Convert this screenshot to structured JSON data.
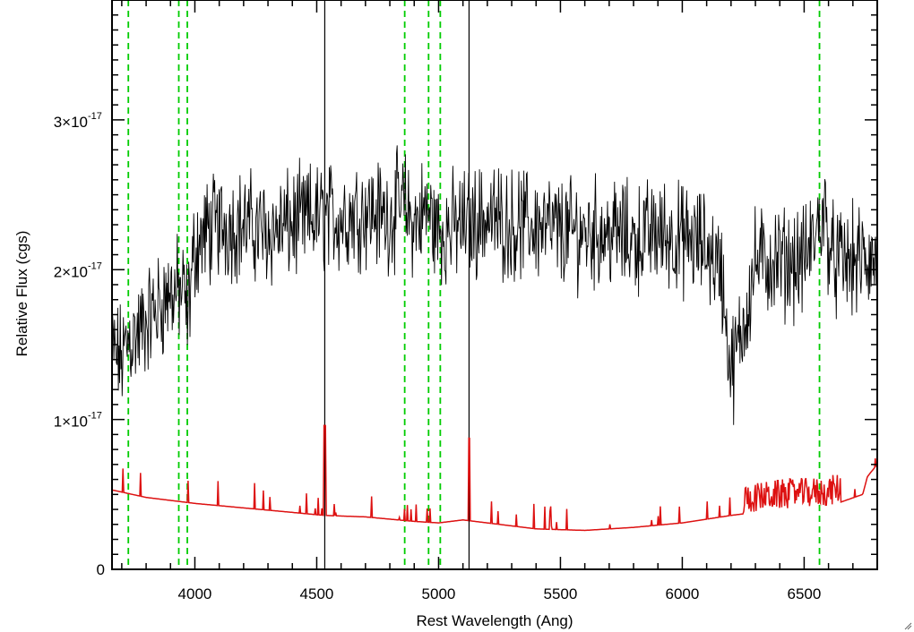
{
  "chart_data": {
    "type": "line",
    "title": "",
    "xlabel": "Rest Wavelength (Ang)",
    "ylabel": "Relative Flux (cgs)",
    "xlim": [
      3660,
      6800
    ],
    "ylim": [
      0,
      3.8e-17
    ],
    "xticks": [
      {
        "value": 4000,
        "label": "4000"
      },
      {
        "value": 4500,
        "label": "4500"
      },
      {
        "value": 5000,
        "label": "5000"
      },
      {
        "value": 5500,
        "label": "5500"
      },
      {
        "value": 6000,
        "label": "6000"
      },
      {
        "value": 6500,
        "label": "6500"
      }
    ],
    "yticks": [
      {
        "value": 0,
        "mantissa": "0",
        "exponent": ""
      },
      {
        "value": 1e-17,
        "mantissa": "1×10",
        "exponent": "-17"
      },
      {
        "value": 2e-17,
        "mantissa": "2×10",
        "exponent": "-17"
      },
      {
        "value": 3e-17,
        "mantissa": "3×10",
        "exponent": "-17"
      }
    ],
    "grid": false,
    "series": [
      {
        "color": "#000000",
        "style": "noisy spectrum",
        "points": [
          [
            3660,
            1.45e-17
          ],
          [
            3700,
            1.4e-17
          ],
          [
            3730,
            1.55e-17
          ],
          [
            3760,
            1.55e-17
          ],
          [
            3800,
            1.65e-17
          ],
          [
            3850,
            1.75e-17
          ],
          [
            3900,
            1.85e-17
          ],
          [
            3950,
            1.85e-17
          ],
          [
            3970,
            1.7e-17
          ],
          [
            4000,
            2.15e-17
          ],
          [
            4050,
            2.25e-17
          ],
          [
            4100,
            2.3e-17
          ],
          [
            4200,
            2.3e-17
          ],
          [
            4300,
            2.25e-17
          ],
          [
            4400,
            2.3e-17
          ],
          [
            4500,
            2.35e-17
          ],
          [
            4600,
            2.35e-17
          ],
          [
            4700,
            2.4e-17
          ],
          [
            4800,
            2.35e-17
          ],
          [
            4850,
            2.45e-17
          ],
          [
            4900,
            2.3e-17
          ],
          [
            4950,
            2.4e-17
          ],
          [
            5000,
            2.25e-17
          ],
          [
            5100,
            2.3e-17
          ],
          [
            5200,
            2.35e-17
          ],
          [
            5300,
            2.3e-17
          ],
          [
            5400,
            2.3e-17
          ],
          [
            5500,
            2.25e-17
          ],
          [
            5600,
            2.25e-17
          ],
          [
            5700,
            2.25e-17
          ],
          [
            5800,
            2.2e-17
          ],
          [
            5900,
            2.25e-17
          ],
          [
            6000,
            2.2e-17
          ],
          [
            6100,
            2.15e-17
          ],
          [
            6160,
            2e-17
          ],
          [
            6200,
            1.3e-17
          ],
          [
            6240,
            1.55e-17
          ],
          [
            6300,
            2.05e-17
          ],
          [
            6400,
            2.05e-17
          ],
          [
            6500,
            2.05e-17
          ],
          [
            6540,
            2.2e-17
          ],
          [
            6580,
            2.4e-17
          ],
          [
            6620,
            2.05e-17
          ],
          [
            6700,
            2.05e-17
          ],
          [
            6800,
            2.05e-17
          ]
        ]
      },
      {
        "color": "#dd1111",
        "style": "error spectrum",
        "points": [
          [
            3660,
            5.3e-18
          ],
          [
            3800,
            4.8e-18
          ],
          [
            4000,
            4.4e-18
          ],
          [
            4200,
            4.1e-18
          ],
          [
            4400,
            3.8e-18
          ],
          [
            4530,
            3.6e-18
          ],
          [
            4700,
            3.5e-18
          ],
          [
            4900,
            3.2e-18
          ],
          [
            5000,
            3.1e-18
          ],
          [
            5100,
            3.3e-18
          ],
          [
            5300,
            2.9e-18
          ],
          [
            5400,
            2.7e-18
          ],
          [
            5600,
            2.6e-18
          ],
          [
            5800,
            2.8e-18
          ],
          [
            6000,
            3.1e-18
          ],
          [
            6200,
            3.6e-18
          ],
          [
            6400,
            4e-18
          ],
          [
            6600,
            4.2e-18
          ],
          [
            6740,
            5e-18
          ],
          [
            6760,
            6.2e-18
          ],
          [
            6800,
            7e-18
          ]
        ]
      }
    ],
    "vertical_lines": [
      {
        "x": 3727,
        "color": "#00cc00",
        "style": "dashed"
      },
      {
        "x": 3934,
        "color": "#00cc00",
        "style": "dashed"
      },
      {
        "x": 3969,
        "color": "#00cc00",
        "style": "dashed"
      },
      {
        "x": 4861,
        "color": "#00cc00",
        "style": "dashed"
      },
      {
        "x": 4959,
        "color": "#00cc00",
        "style": "dashed"
      },
      {
        "x": 5007,
        "color": "#00cc00",
        "style": "dashed"
      },
      {
        "x": 6563,
        "color": "#00cc00",
        "style": "dashed"
      },
      {
        "x": 4533,
        "color": "#000000",
        "style": "solid"
      },
      {
        "x": 5125,
        "color": "#000000",
        "style": "solid"
      }
    ]
  }
}
